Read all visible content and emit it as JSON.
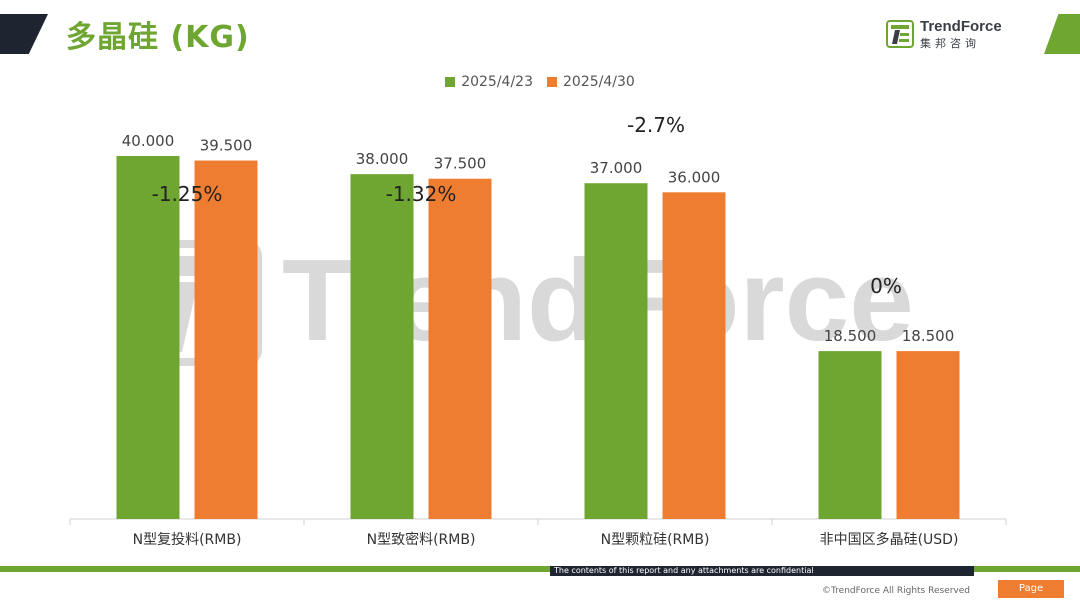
{
  "header": {
    "title": "多晶硅 (KG)",
    "logo_en": "TrendForce",
    "logo_cn": "集邦咨询"
  },
  "footer": {
    "disclaimer": "The contents of this report and any attachments are confidential",
    "copyright": "©TrendForce All Rights Reserved",
    "page_label": "Page"
  },
  "colors": {
    "series1": "#6fa632",
    "series2": "#ef7d31",
    "dark": "#1f2530"
  },
  "chart_data": {
    "type": "bar",
    "categories": [
      "N型复投料(RMB)",
      "N型致密料(RMB)",
      "N型颗粒硅(RMB)",
      "非中国区多晶硅(USD)"
    ],
    "series": [
      {
        "name": "2025/4/23",
        "values": [
          40.0,
          38.0,
          37.0,
          18.5
        ],
        "labels": [
          "40.000",
          "38.000",
          "37.000",
          "18.500"
        ]
      },
      {
        "name": "2025/4/30",
        "values": [
          39.5,
          37.5,
          36.0,
          18.5
        ],
        "labels": [
          "39.500",
          "37.500",
          "36.000",
          "18.500"
        ]
      }
    ],
    "annotations": [
      "-1.25%",
      "-1.32%",
      "-2.7%",
      "0%"
    ],
    "ylim": [
      0,
      40
    ],
    "legend": "top-center",
    "grid": false
  }
}
